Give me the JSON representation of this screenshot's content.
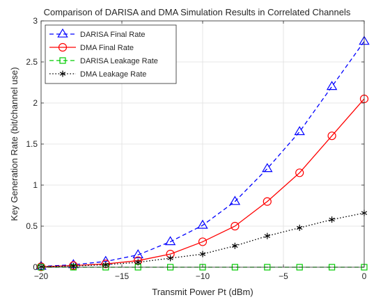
{
  "chart_data": {
    "type": "line",
    "title": "Comparison of DARISA and DMA Simulation Results in Correlated Channels",
    "xlabel": "Transmit Power Pt (dBm)",
    "ylabel": "Key Generation Rate (bit/channel use)",
    "xlim": [
      -20,
      0
    ],
    "ylim": [
      0,
      3
    ],
    "x_ticks": [
      -20,
      -15,
      -10,
      -5,
      0
    ],
    "x_tick_labels": [
      "−20",
      "−15",
      "−10",
      "−5",
      "0"
    ],
    "y_ticks": [
      0,
      0.5,
      1,
      1.5,
      2,
      2.5,
      3
    ],
    "y_tick_labels": [
      "0",
      "0.5",
      "1",
      "1.5",
      "2",
      "2.5",
      "3"
    ],
    "grid": true,
    "legend_position": "top-left",
    "x": [
      -20,
      -18,
      -16,
      -14,
      -12,
      -10,
      -8,
      -6,
      -4,
      -2,
      0
    ],
    "series": [
      {
        "name": "DARISA Final Rate",
        "color": "#0000ff",
        "dash": "dashed",
        "marker": "triangle",
        "values": [
          0.01,
          0.03,
          0.07,
          0.15,
          0.31,
          0.51,
          0.8,
          1.2,
          1.65,
          2.2,
          2.75
        ]
      },
      {
        "name": "DMA Final Rate",
        "color": "#ff0000",
        "dash": "solid",
        "marker": "circle",
        "values": [
          0.005,
          0.02,
          0.04,
          0.08,
          0.16,
          0.31,
          0.5,
          0.8,
          1.15,
          1.6,
          2.05
        ]
      },
      {
        "name": "DARISA Leakage Rate",
        "color": "#00cc00",
        "dash": "dashed",
        "marker": "square",
        "values": [
          0.0,
          0.0,
          0.0,
          0.0,
          0.0,
          0.0,
          0.0,
          0.0,
          0.0,
          0.0,
          0.0
        ]
      },
      {
        "name": "DMA Leakage Rate",
        "color": "#000000",
        "dash": "dotted",
        "marker": "asterisk",
        "values": [
          0.005,
          0.015,
          0.03,
          0.06,
          0.11,
          0.16,
          0.26,
          0.38,
          0.48,
          0.58,
          0.66
        ]
      }
    ]
  }
}
